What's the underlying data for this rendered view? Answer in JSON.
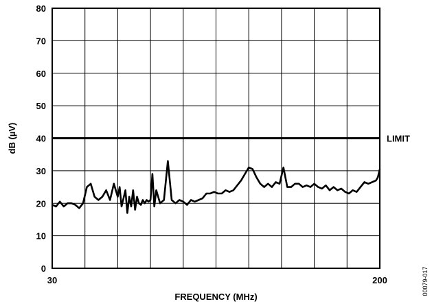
{
  "chart_data": {
    "type": "line",
    "xlabel": "FREQUENCY (MHz)",
    "ylabel": "dB (µV)",
    "figure_id": "00079-017",
    "xlim": [
      30,
      200
    ],
    "ylim": [
      0,
      80
    ],
    "x_tick_labels": [
      "30",
      "200"
    ],
    "y_ticks": [
      0,
      10,
      20,
      30,
      40,
      50,
      60,
      70,
      80
    ],
    "grid": true,
    "limit": {
      "label": "LIMIT",
      "value": 40
    },
    "series": [
      {
        "x": [
          30,
          32,
          34,
          36,
          38,
          40,
          42,
          44,
          46,
          48,
          50,
          52,
          53,
          54,
          56,
          58,
          60,
          62,
          64,
          65,
          66,
          68,
          69,
          70,
          71,
          72,
          73,
          74,
          75,
          76,
          77,
          78,
          79,
          80,
          81,
          82,
          83,
          84,
          86,
          88,
          90,
          92,
          94,
          96,
          98,
          100,
          102,
          104,
          106,
          108,
          110,
          112,
          114,
          116,
          118,
          120,
          122,
          124,
          126,
          128,
          130,
          132,
          134,
          136,
          138,
          140,
          142,
          144,
          146,
          148,
          150,
          152,
          154,
          156,
          158,
          160,
          162,
          164,
          166,
          168,
          170,
          172,
          174,
          176,
          178,
          180,
          182,
          184,
          186,
          188,
          190,
          192,
          194,
          196,
          198,
          199,
          200
        ],
        "y": [
          19.5,
          19,
          20.5,
          19,
          20,
          20,
          19.5,
          18.5,
          20,
          25,
          26,
          22,
          21.5,
          21,
          22,
          24,
          21,
          26,
          22,
          25,
          19,
          24,
          17,
          22,
          19,
          24,
          18,
          22,
          20,
          19.5,
          21,
          20,
          21,
          20.5,
          21,
          29,
          19,
          24,
          20,
          21,
          33,
          21,
          20,
          21,
          20.5,
          19.5,
          21,
          20.5,
          21,
          21.5,
          23,
          23,
          23.5,
          23,
          23,
          24,
          23.5,
          24,
          25.5,
          27,
          29,
          31,
          30.5,
          28,
          26,
          25,
          26,
          25,
          26.5,
          26,
          31,
          25,
          25,
          26,
          26,
          25,
          25.5,
          25,
          26,
          25,
          24.5,
          25.5,
          24,
          25,
          24,
          24.5,
          23.5,
          23,
          24,
          23.5,
          25,
          26.5,
          26,
          26.5,
          27,
          28,
          30.5
        ]
      }
    ]
  }
}
